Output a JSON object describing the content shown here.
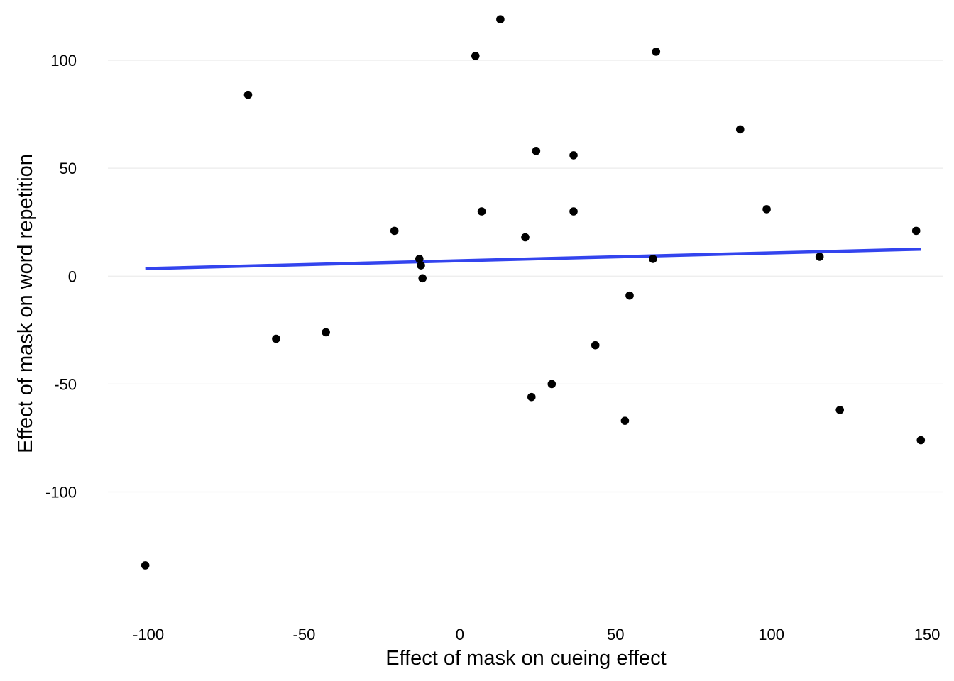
{
  "chart_data": {
    "type": "scatter",
    "title": "",
    "xlabel": "Effect of mask on cueing effect",
    "ylabel": "Effect of mask on word repetition",
    "xlim": [
      -113,
      155
    ],
    "ylim": [
      -158,
      124
    ],
    "x_ticks": [
      -100,
      -50,
      0,
      50,
      100,
      150
    ],
    "y_ticks": [
      -100,
      -50,
      0,
      50,
      100
    ],
    "x_tick_labels": [
      "-100",
      "-50",
      "0",
      "50",
      "100",
      "150"
    ],
    "y_tick_labels": [
      "-100",
      "-50",
      "0",
      "50",
      "100"
    ],
    "grid": "horizontal",
    "legend": "none",
    "point_color": "#000000",
    "line_color": "#3344ee",
    "points": [
      {
        "x": -101,
        "y": -134
      },
      {
        "x": -68,
        "y": 84
      },
      {
        "x": -59,
        "y": -29
      },
      {
        "x": -43,
        "y": -26
      },
      {
        "x": -21,
        "y": 21
      },
      {
        "x": -13,
        "y": 8
      },
      {
        "x": -12.5,
        "y": 5
      },
      {
        "x": -12,
        "y": -1
      },
      {
        "x": 5,
        "y": 102
      },
      {
        "x": 7,
        "y": 30
      },
      {
        "x": 13,
        "y": 119
      },
      {
        "x": 21,
        "y": 18
      },
      {
        "x": 23,
        "y": -56
      },
      {
        "x": 24.5,
        "y": 58
      },
      {
        "x": 29.5,
        "y": -50
      },
      {
        "x": 36.5,
        "y": 56
      },
      {
        "x": 36.5,
        "y": 30
      },
      {
        "x": 43.5,
        "y": -32
      },
      {
        "x": 53,
        "y": -67
      },
      {
        "x": 54.5,
        "y": -9
      },
      {
        "x": 62,
        "y": 8
      },
      {
        "x": 63,
        "y": 104
      },
      {
        "x": 90,
        "y": 68
      },
      {
        "x": 98.5,
        "y": 31
      },
      {
        "x": 115.5,
        "y": 9
      },
      {
        "x": 122,
        "y": -62
      },
      {
        "x": 146.5,
        "y": 21
      },
      {
        "x": 148,
        "y": -76
      }
    ],
    "fit_line": {
      "x": [
        -101,
        148
      ],
      "y": [
        3.5,
        12.5
      ]
    }
  }
}
